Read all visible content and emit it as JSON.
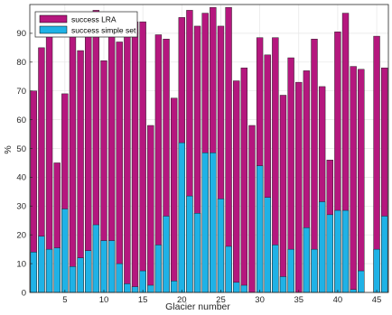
{
  "chart_data": {
    "type": "bar",
    "xlabel": "Glacier number",
    "ylabel": "%",
    "ylim": [
      0,
      100
    ],
    "xlim": [
      0.5,
      46.5
    ],
    "x_ticks": [
      5,
      10,
      15,
      20,
      25,
      30,
      35,
      40,
      45
    ],
    "y_ticks": [
      0,
      10,
      20,
      30,
      40,
      50,
      60,
      70,
      80,
      90
    ],
    "grid": true,
    "legend_position": "top-left",
    "bar_mode": "overlay",
    "x": [
      1,
      2,
      3,
      4,
      5,
      6,
      7,
      8,
      9,
      10,
      11,
      12,
      13,
      14,
      15,
      16,
      17,
      18,
      19,
      20,
      21,
      22,
      23,
      24,
      25,
      26,
      27,
      28,
      29,
      30,
      31,
      32,
      33,
      34,
      35,
      36,
      37,
      38,
      39,
      40,
      41,
      42,
      43,
      44,
      45,
      46
    ],
    "series": [
      {
        "name": "success LRA",
        "color": "#b5177e",
        "values": [
          70,
          85,
          90,
          45,
          69,
          90,
          84,
          90,
          98,
          80.5,
          90,
          87,
          90,
          94,
          94,
          58,
          89.5,
          88,
          67.5,
          95.5,
          98,
          92.5,
          97,
          99,
          92.5,
          99,
          73.5,
          78,
          58,
          88.5,
          82.5,
          88.5,
          68.5,
          81.5,
          73,
          77,
          88,
          71.5,
          46,
          90.5,
          97,
          78.5,
          77.5,
          0,
          89,
          78
        ]
      },
      {
        "name": "success simple set",
        "color": "#1fb2e6",
        "values": [
          14,
          19.5,
          15,
          15.5,
          29,
          9,
          12,
          14.5,
          23.5,
          18,
          18,
          10,
          3,
          2,
          7.5,
          2.5,
          16.5,
          26.5,
          4,
          52,
          33.5,
          27.5,
          48.5,
          48.5,
          32.5,
          16,
          3.5,
          2.5,
          0,
          44,
          33,
          16.5,
          5.5,
          15,
          0,
          22.5,
          15,
          31.5,
          27,
          28.5,
          28.5,
          1,
          7.5,
          0,
          15,
          26.5
        ]
      }
    ]
  }
}
